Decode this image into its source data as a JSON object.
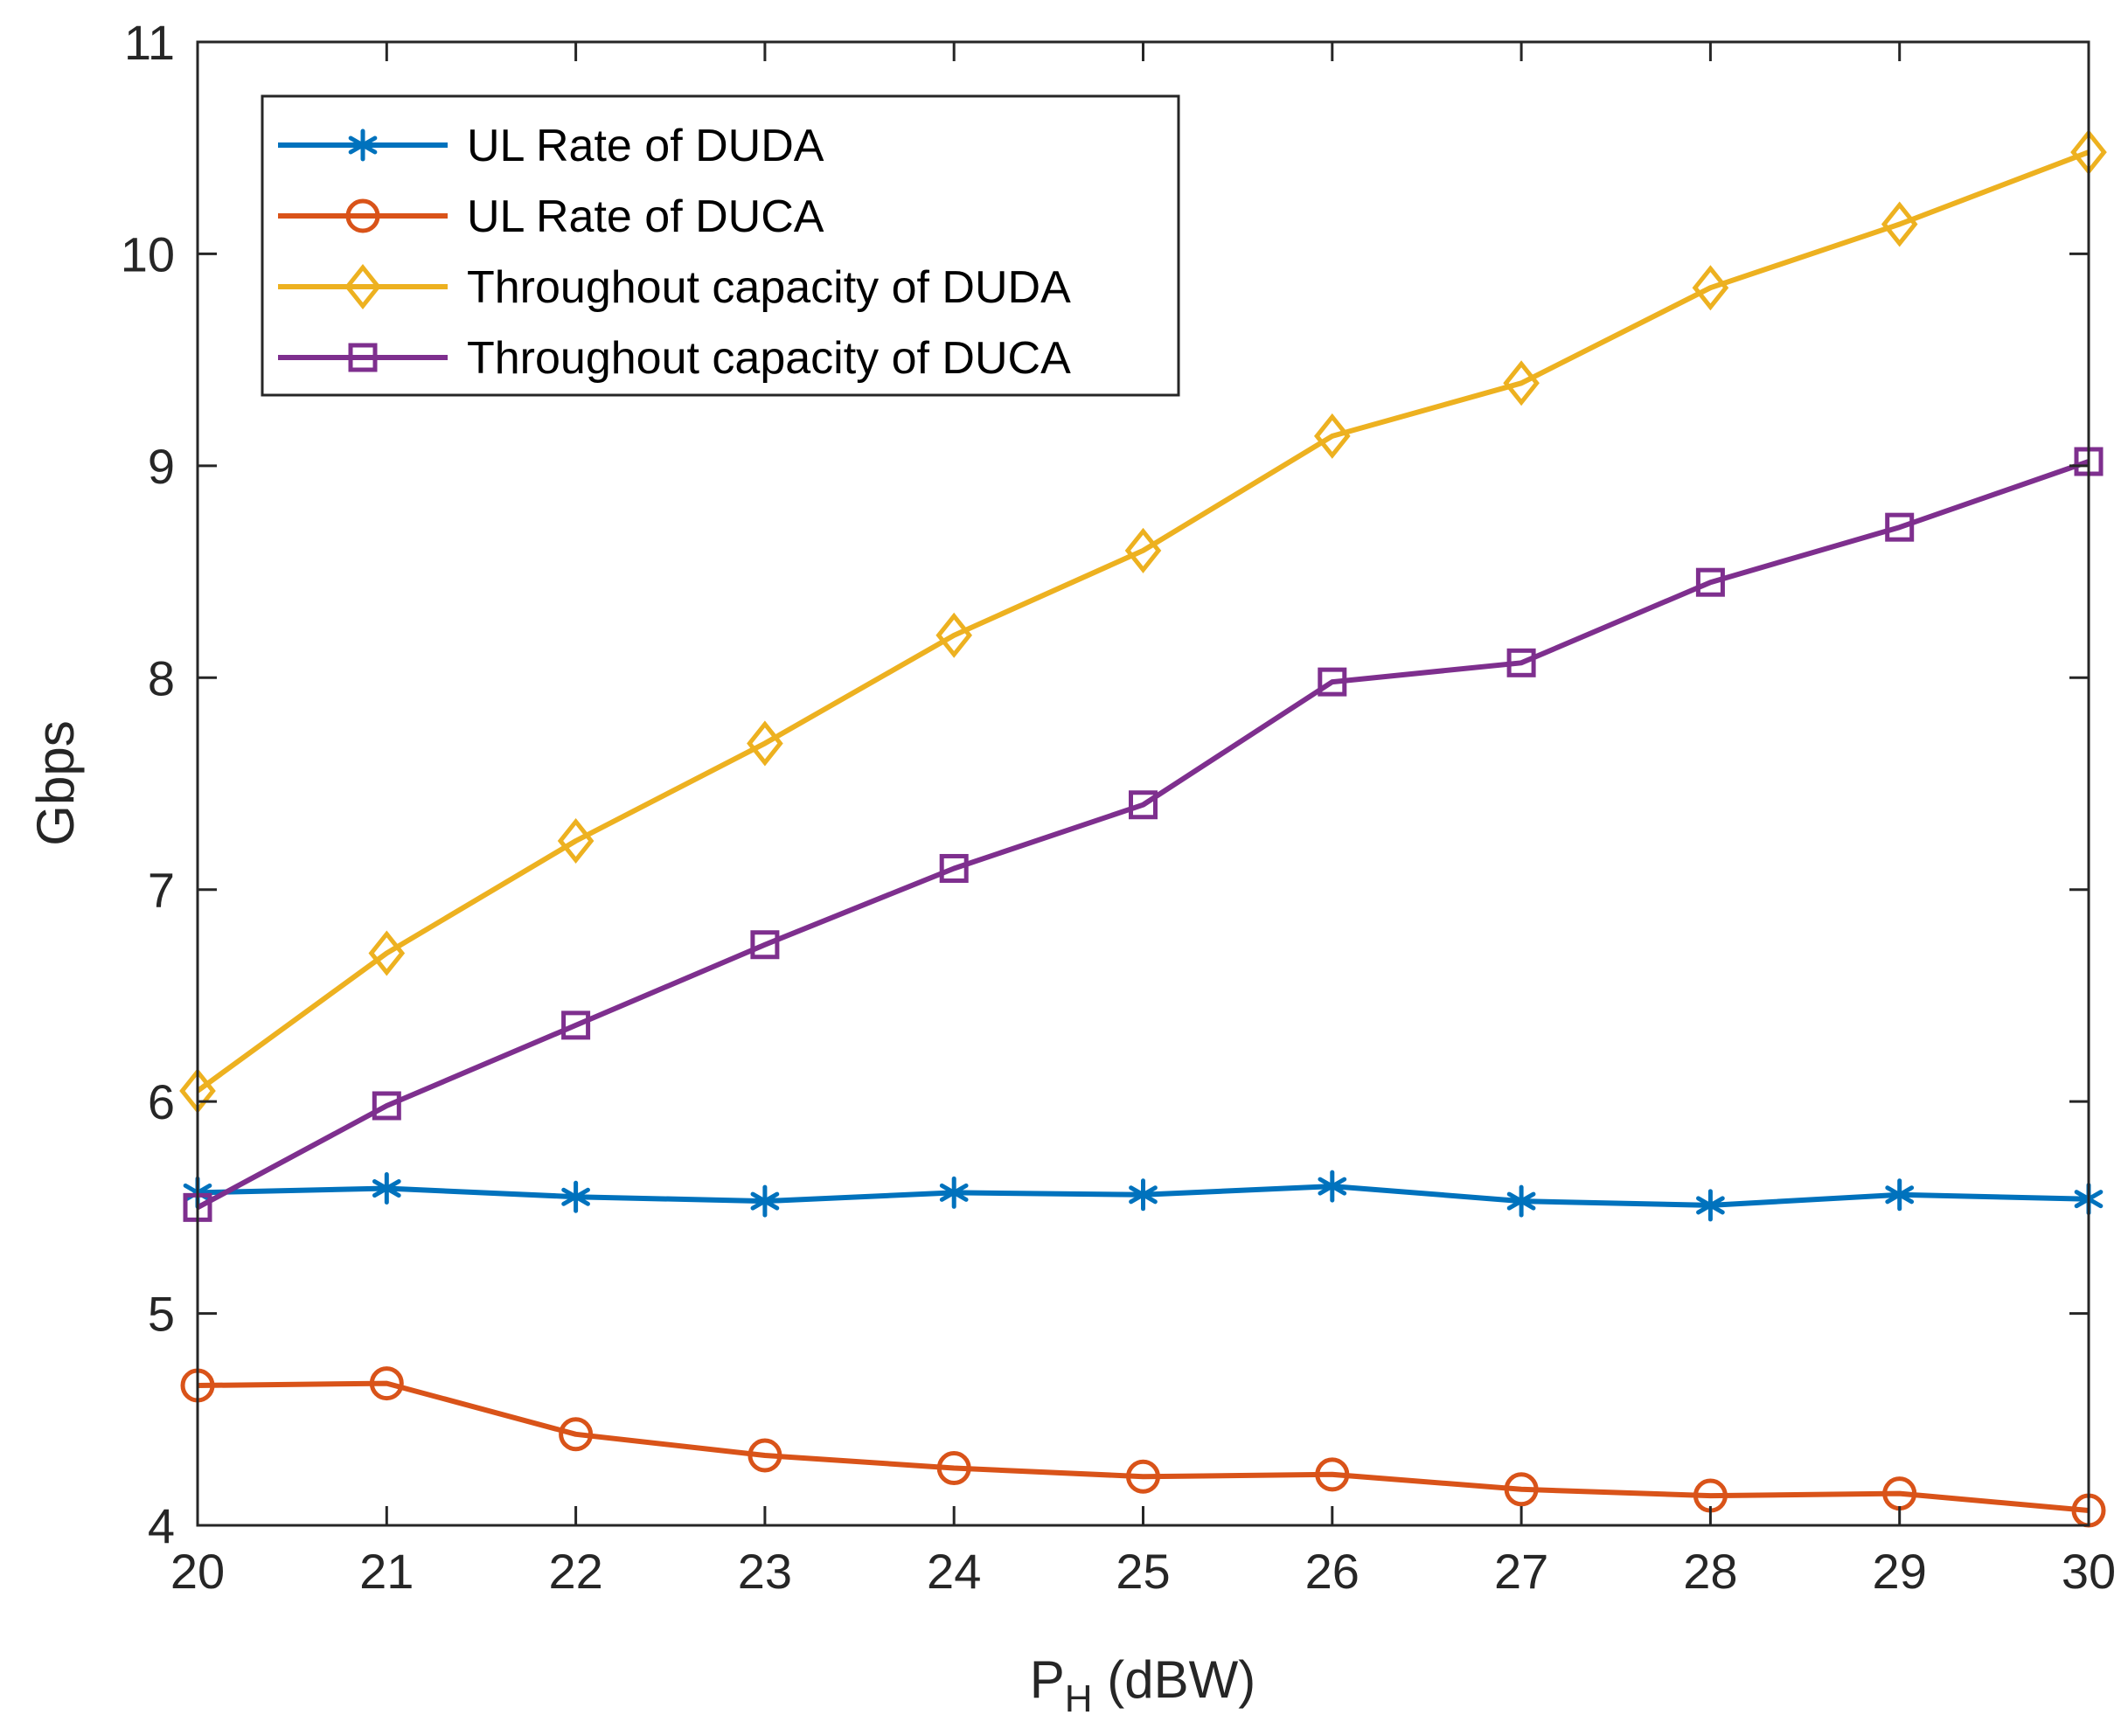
{
  "chart_data": {
    "type": "line",
    "title": "",
    "xlabel_main": "P",
    "xlabel_sub": "H",
    "xlabel_unit": " (dBW)",
    "ylabel": "Gbps",
    "xlim": [
      20,
      30
    ],
    "ylim": [
      4,
      11
    ],
    "x_ticks": [
      "20",
      "21",
      "22",
      "23",
      "24",
      "25",
      "26",
      "27",
      "28",
      "29",
      "30"
    ],
    "y_ticks": [
      "4",
      "5",
      "6",
      "7",
      "8",
      "9",
      "10",
      "11"
    ],
    "grid": false,
    "legend_position": "top-left",
    "x": [
      20,
      21,
      22,
      23,
      24,
      25,
      26,
      27,
      28,
      29,
      30
    ],
    "series": [
      {
        "name": "UL Rate of DUDA",
        "color": "#0072BD",
        "marker": "asterisk",
        "values": [
          5.57,
          5.59,
          5.55,
          5.53,
          5.57,
          5.56,
          5.6,
          5.53,
          5.51,
          5.56,
          5.54
        ]
      },
      {
        "name": "UL Rate of DUCA",
        "color": "#D95319",
        "marker": "circle",
        "values": [
          4.66,
          4.67,
          4.43,
          4.33,
          4.27,
          4.23,
          4.24,
          4.17,
          4.14,
          4.15,
          4.07
        ]
      },
      {
        "name": "Throughout capacity of DUDA",
        "color": "#EDB120",
        "marker": "diamond",
        "values": [
          6.05,
          6.7,
          7.23,
          7.69,
          8.2,
          8.6,
          9.14,
          9.39,
          9.84,
          10.14,
          10.48
        ]
      },
      {
        "name": "Throughout capacity of DUCA",
        "color": "#7E2F8E",
        "marker": "square",
        "values": [
          5.5,
          5.98,
          6.36,
          6.74,
          7.1,
          7.4,
          7.98,
          8.07,
          8.45,
          8.71,
          9.02
        ]
      }
    ]
  }
}
